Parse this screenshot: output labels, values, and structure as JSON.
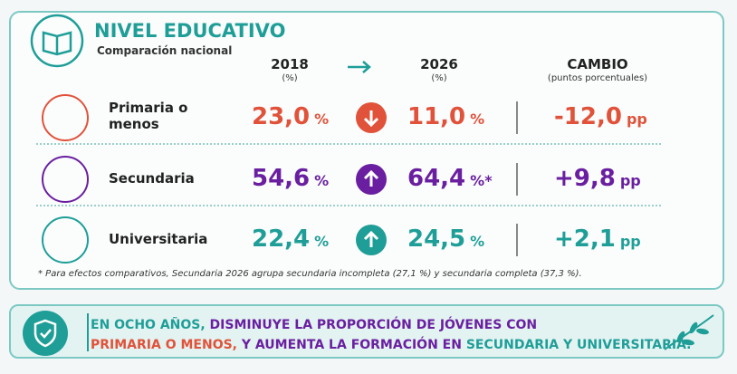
{
  "header": {
    "title": "NIVEL EDUCATIVO",
    "subtitle": "Comparación nacional"
  },
  "columns": {
    "year_from": "2018",
    "year_from_unit": "(%)",
    "year_to": "2026",
    "year_to_unit": "(%)",
    "change": "CAMBIO",
    "change_unit": "(puntos porcentuales)"
  },
  "rows": [
    {
      "label": "Primaria o menos",
      "value_2018": "23,0",
      "unit_2018": "%",
      "value_2026": "11,0",
      "unit_2026": "%",
      "change": "-12,0",
      "change_unit": "pp"
    },
    {
      "label": "Secundaria",
      "value_2018": "54,6",
      "unit_2018": "%",
      "value_2026": "64,4",
      "unit_2026": "%*",
      "change": "+9,8",
      "change_unit": "pp"
    },
    {
      "label": "Universitaria",
      "value_2018": "22,4",
      "unit_2018": "%",
      "value_2026": "24,5",
      "unit_2026": "%",
      "change": "+2,1",
      "change_unit": "pp"
    }
  ],
  "footnote": "* Para efectos comparativos, Secundaria 2026 agrupa secundaria incompleta (27,1 %) y secundaria completa (37,3 %).",
  "banner": {
    "part1": "EN OCHO AÑOS,",
    "part2": " DISMINUYE LA PROPORCIÓN DE JÓVENES CON",
    "part3": "PRIMARIA O MENOS,",
    "part4": " Y AUMENTA LA FORMACIÓN EN ",
    "part5": "SECUNDARIA Y UNIVERSITARIA."
  }
}
